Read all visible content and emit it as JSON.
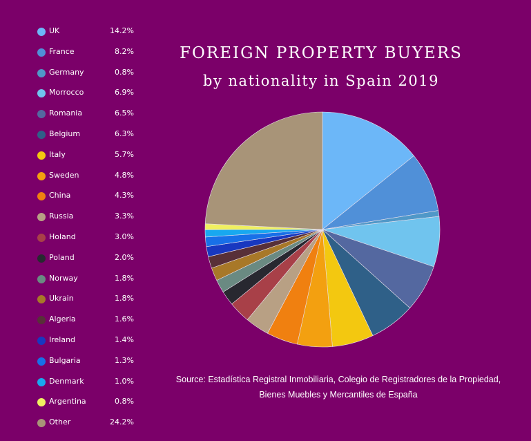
{
  "chart_data": {
    "type": "pie",
    "title_line1": "FOREIGN PROPERTY BUYERS",
    "title_line2": "by nationality in Spain 2019",
    "source": "Source: Estadística Registral Inmobiliaria, Colegio de Registradores de la Propiedad, Bienes Muebles y Mercantiles de España",
    "slices": [
      {
        "label": "UK",
        "value": 14.2,
        "display": "14.2%",
        "color": "#6cb7f8"
      },
      {
        "label": "France",
        "value": 8.2,
        "display": "8.2%",
        "color": "#5090d8"
      },
      {
        "label": "Germany",
        "value": 0.8,
        "display": "0.8%",
        "color": "#5098c8"
      },
      {
        "label": "Morrocco",
        "value": 6.9,
        "display": "6.9%",
        "color": "#70c4ee"
      },
      {
        "label": "Romania",
        "value": 6.5,
        "display": "6.5%",
        "color": "#5468a0"
      },
      {
        "label": "Belgium",
        "value": 6.3,
        "display": "6.3%",
        "color": "#2f6088"
      },
      {
        "label": "Italy",
        "value": 5.7,
        "display": "5.7%",
        "color": "#f3c810"
      },
      {
        "label": "Sweden",
        "value": 4.8,
        "display": "4.8%",
        "color": "#f3a010"
      },
      {
        "label": "China",
        "value": 4.3,
        "display": "4.3%",
        "color": "#f08010"
      },
      {
        "label": "Russia",
        "value": 3.3,
        "display": "3.3%",
        "color": "#b8a084"
      },
      {
        "label": "Holand",
        "value": 3.0,
        "display": "3.0%",
        "color": "#a84048"
      },
      {
        "label": "Poland",
        "value": 2.0,
        "display": "2.0%",
        "color": "#282830"
      },
      {
        "label": "Norway",
        "value": 1.8,
        "display": "1.8%",
        "color": "#6a8a82"
      },
      {
        "label": "Ukrain",
        "value": 1.8,
        "display": "1.8%",
        "color": "#a87828"
      },
      {
        "label": "Algeria",
        "value": 1.6,
        "display": "1.6%",
        "color": "#583038"
      },
      {
        "label": "Ireland",
        "value": 1.4,
        "display": "1.4%",
        "color": "#1838c0"
      },
      {
        "label": "Bulgaria",
        "value": 1.3,
        "display": "1.3%",
        "color": "#1870e8"
      },
      {
        "label": "Denmark",
        "value": 1.0,
        "display": "1.0%",
        "color": "#18a8f0"
      },
      {
        "label": "Argentina",
        "value": 0.8,
        "display": "0.8%",
        "color": "#f0f060"
      },
      {
        "label": "Other",
        "value": 24.2,
        "display": "24.2%",
        "color": "#a89478"
      }
    ]
  }
}
